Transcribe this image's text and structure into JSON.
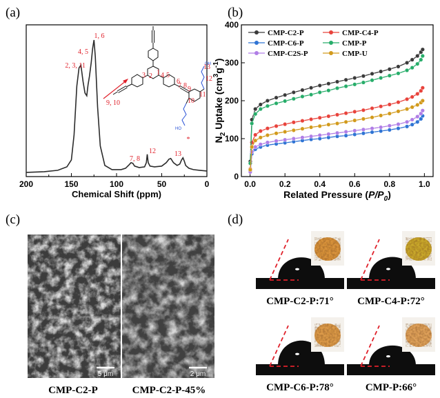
{
  "panels": {
    "a": "(a)",
    "b": "(b)",
    "c": "(c)",
    "d": "(d)"
  },
  "chart_data": [
    {
      "type": "line",
      "panel": "a",
      "xlabel": "Chemical Shift (ppm)",
      "ylabel": "",
      "xlim": [
        200,
        0
      ],
      "x_reversed": true,
      "x_ticks": [
        "200",
        "150",
        "100",
        "50",
        "0"
      ],
      "y_ticks": [],
      "series": [
        {
          "x": [
            200,
            180,
            165,
            155,
            150,
            147,
            144,
            141.5,
            139.5,
            137,
            135,
            133,
            131.5,
            130,
            128,
            126.5,
            125,
            123.5,
            121,
            118,
            113,
            105,
            95,
            90,
            86,
            84,
            82,
            80,
            75,
            69,
            67,
            66,
            65,
            63,
            58,
            50,
            45,
            42,
            40,
            37,
            33,
            30,
            28,
            26.5,
            25,
            23.5,
            20,
            15,
            8,
            0
          ],
          "y": [
            0.03,
            0.035,
            0.045,
            0.07,
            0.12,
            0.3,
            0.65,
            0.78,
            0.8,
            0.68,
            0.6,
            0.58,
            0.66,
            0.72,
            0.82,
            0.92,
            0.98,
            0.86,
            0.5,
            0.22,
            0.08,
            0.05,
            0.05,
            0.06,
            0.085,
            0.1,
            0.095,
            0.075,
            0.065,
            0.07,
            0.1,
            0.16,
            0.1,
            0.075,
            0.07,
            0.075,
            0.1,
            0.125,
            0.13,
            0.1,
            0.08,
            0.09,
            0.12,
            0.135,
            0.11,
            0.08,
            0.06,
            0.05,
            0.045,
            0.04
          ]
        }
      ],
      "peak_labels": [
        {
          "text": "1, 6",
          "ppm": 125
        },
        {
          "text": "4, 5",
          "ppm": 131
        },
        {
          "text": "2, 3, 11",
          "ppm": 141
        },
        {
          "text": "9, 10",
          "ppm": 118
        },
        {
          "text": "7, 8",
          "ppm": 84
        },
        {
          "text": "12",
          "ppm": 66
        },
        {
          "text": "13",
          "ppm": 40
        },
        {
          "text": "*",
          "ppm": 26.5
        }
      ],
      "structure_labels": {
        "carbons": [
          "1",
          "2",
          "3",
          "4",
          "5",
          "6",
          "7",
          "8",
          "9",
          "10",
          "11",
          "12",
          "13"
        ],
        "oh": "OH",
        "ho": "HO"
      }
    },
    {
      "type": "line",
      "panel": "b",
      "xlabel": "Related Pressure (P/P0)",
      "xlabel_main": "Related Pressure (",
      "xlabel_var": "P/P",
      "xlabel_sub": "0",
      "xlabel_end": ")",
      "ylabel": "N2 Uptake (cm3g-1)",
      "ylabel_a": "N",
      "ylabel_a_sub": "2",
      "ylabel_b": " Uptake (cm",
      "ylabel_b_sup": "3",
      "ylabel_c": "g",
      "ylabel_c_sup": "-1",
      "ylabel_d": ")",
      "xlim": [
        -0.05,
        1.05
      ],
      "ylim": [
        0,
        400
      ],
      "x_ticks": [
        "0.0",
        "0.2",
        "0.4",
        "0.6",
        "0.8",
        "1.0"
      ],
      "y_ticks": [
        "0",
        "100",
        "200",
        "300",
        "400"
      ],
      "x": [
        0.001,
        0.01,
        0.03,
        0.06,
        0.1,
        0.15,
        0.2,
        0.25,
        0.3,
        0.35,
        0.4,
        0.45,
        0.5,
        0.55,
        0.6,
        0.65,
        0.7,
        0.75,
        0.8,
        0.85,
        0.9,
        0.93,
        0.96,
        0.98,
        0.99
      ],
      "series": [
        {
          "name": "CMP-C2-P",
          "color": "#3a3a3a",
          "values": [
            40,
            150,
            178,
            190,
            200,
            208,
            215,
            222,
            228,
            234,
            240,
            245,
            250,
            255,
            260,
            265,
            271,
            277,
            283,
            290,
            300,
            308,
            318,
            328,
            335
          ]
        },
        {
          "name": "CMP-C4-P",
          "color": "#e8433c",
          "values": [
            20,
            90,
            110,
            120,
            127,
            133,
            138,
            143,
            147,
            151,
            155,
            159,
            163,
            167,
            171,
            175,
            180,
            185,
            190,
            196,
            204,
            210,
            218,
            226,
            234
          ]
        },
        {
          "name": "CMP-C6-P",
          "color": "#2f74d4",
          "values": [
            15,
            60,
            72,
            78,
            83,
            86,
            89,
            92,
            95,
            98,
            100,
            103,
            106,
            108,
            111,
            114,
            117,
            120,
            123,
            127,
            132,
            137,
            144,
            152,
            160
          ]
        },
        {
          "name": "CMP-P",
          "color": "#27ad6a",
          "values": [
            35,
            140,
            165,
            178,
            186,
            193,
            199,
            205,
            211,
            216,
            222,
            227,
            233,
            238,
            243,
            248,
            254,
            260,
            266,
            272,
            280,
            287,
            297,
            308,
            318
          ]
        },
        {
          "name": "CMP-C2S-P",
          "color": "#b07ee6",
          "values": [
            12,
            65,
            78,
            85,
            90,
            94,
            97,
            100,
            103,
            106,
            109,
            112,
            115,
            118,
            121,
            124,
            127,
            130,
            134,
            138,
            144,
            150,
            158,
            166,
            174
          ]
        },
        {
          "name": "CMP-U",
          "color": "#d29a1c",
          "values": [
            18,
            78,
            95,
            103,
            109,
            114,
            118,
            122,
            126,
            130,
            133,
            137,
            140,
            144,
            148,
            152,
            156,
            161,
            166,
            172,
            178,
            183,
            189,
            195,
            200
          ]
        }
      ],
      "legend_position": "top"
    }
  ],
  "sem": {
    "images": [
      {
        "caption": "CMP-C2-P",
        "scale": "5 μm"
      },
      {
        "caption": "CMP-C2-P-45%",
        "scale": "2 μm"
      }
    ]
  },
  "contact_angle": {
    "items": [
      {
        "label": "CMP-C2-P:71°",
        "angle": 71,
        "powder_color": "#d9933d"
      },
      {
        "label": "CMP-C4-P:72°",
        "angle": 72,
        "powder_color": "#c9a82c"
      },
      {
        "label": "CMP-C6-P:78°",
        "angle": 78,
        "powder_color": "#dc9a4a"
      },
      {
        "label": "CMP-P:66°",
        "angle": 66,
        "powder_color": "#dfa15c"
      }
    ]
  }
}
